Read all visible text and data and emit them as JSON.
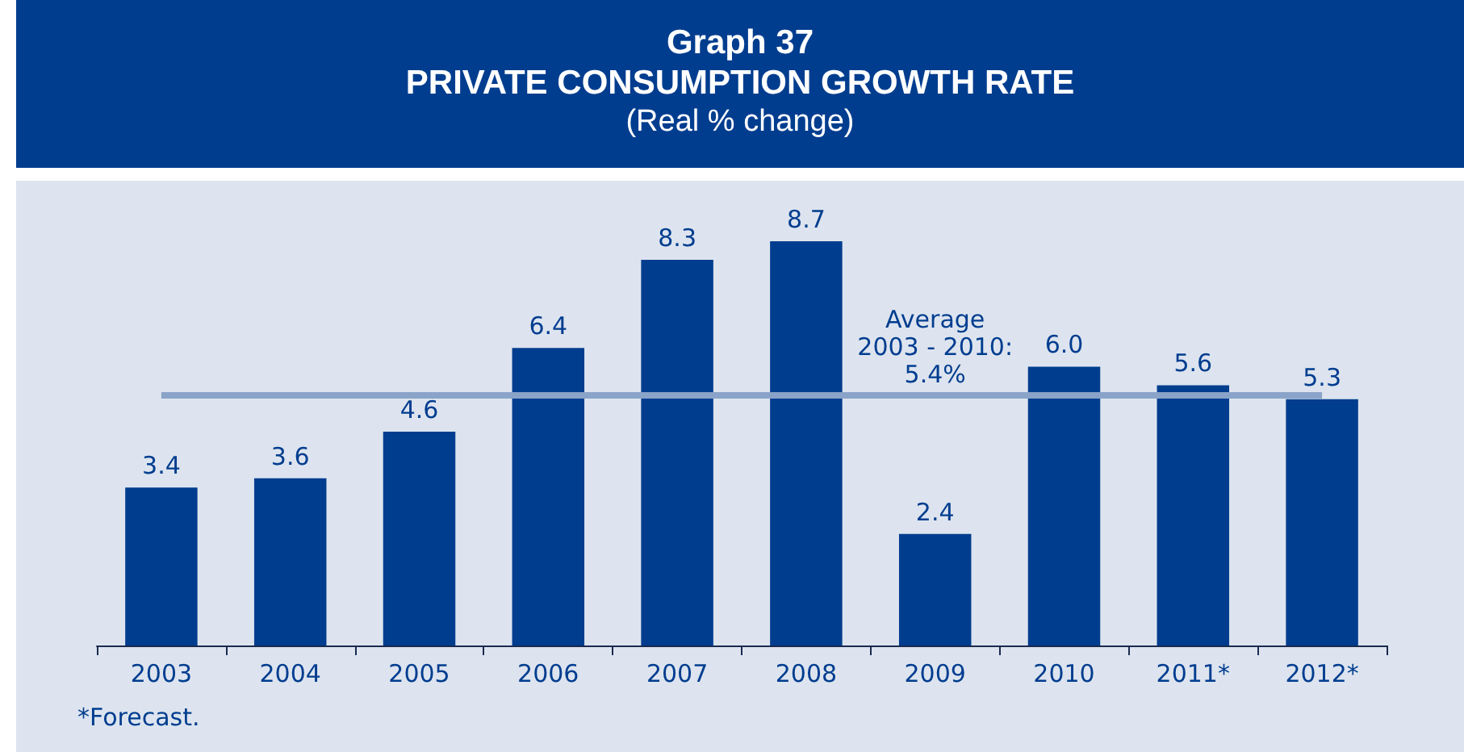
{
  "chart_data": {
    "type": "bar",
    "title": "Graph 37\nPRIVATE CONSUMPTION GROWTH RATE",
    "subtitle": "(Real % change)",
    "categories": [
      "2003",
      "2004",
      "2005",
      "2006",
      "2007",
      "2008",
      "2009",
      "2010",
      "2011*",
      "2012*"
    ],
    "values": [
      3.4,
      3.6,
      4.6,
      6.4,
      8.3,
      8.7,
      2.4,
      6.0,
      5.6,
      5.3
    ],
    "value_labels": [
      "3.4",
      "3.6",
      "4.6",
      "6.4",
      "8.3",
      "8.7",
      "2.4",
      "6.0",
      "5.6",
      "5.3"
    ],
    "color": "#003d8f",
    "ref_lines": [
      {
        "axis": "y",
        "value": 5.4,
        "label": "Average\n2003 - 2010:\n5.4%",
        "color": "#8aa3c8"
      }
    ],
    "annotations": [
      "*Forecast."
    ]
  }
}
